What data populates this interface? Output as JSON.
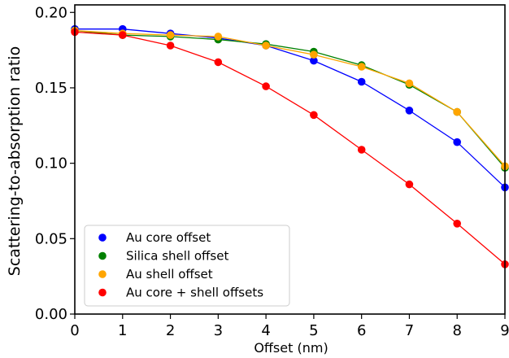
{
  "chart_data": {
    "type": "scatter",
    "title": "",
    "xlabel": "Offset (nm)",
    "ylabel": "Scattering-to-absorption ratio",
    "xlim": [
      0,
      9
    ],
    "ylim": [
      0,
      0.205
    ],
    "xticks": [
      "0",
      "1",
      "2",
      "3",
      "4",
      "5",
      "6",
      "7",
      "8",
      "9"
    ],
    "yticks": [
      "0.00",
      "0.05",
      "0.10",
      "0.15",
      "0.20"
    ],
    "grid": false,
    "legend_position": "lower-left",
    "x": [
      0,
      1,
      2,
      3,
      4,
      5,
      6,
      7,
      8,
      9
    ],
    "series": [
      {
        "name": "Au core offset",
        "color": "#0000ff",
        "values": [
          0.189,
          0.189,
          0.186,
          0.183,
          0.178,
          0.168,
          0.154,
          0.135,
          0.114,
          0.084
        ]
      },
      {
        "name": "Silica shell offset",
        "color": "#008000",
        "values": [
          0.188,
          0.185,
          0.184,
          0.182,
          0.179,
          0.174,
          0.165,
          0.152,
          0.134,
          0.097
        ]
      },
      {
        "name": "Au shell offset",
        "color": "#ffa500",
        "values": [
          0.188,
          0.186,
          0.185,
          0.184,
          0.178,
          0.172,
          0.164,
          0.153,
          0.134,
          0.098
        ]
      },
      {
        "name": "Au core + shell offsets",
        "color": "#ff0000",
        "values": [
          0.187,
          0.185,
          0.178,
          0.167,
          0.151,
          0.132,
          0.109,
          0.086,
          0.06,
          0.033
        ]
      }
    ]
  }
}
